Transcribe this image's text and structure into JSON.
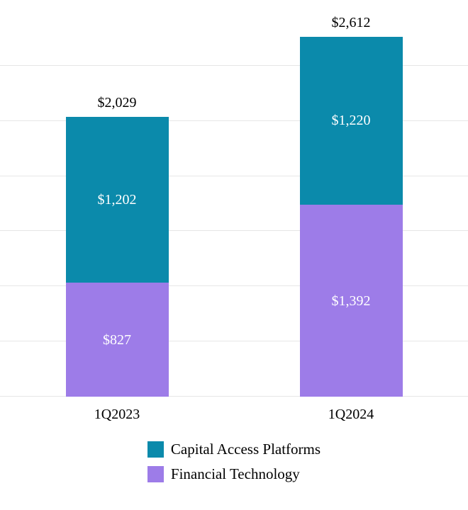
{
  "chart_data": {
    "type": "bar",
    "stacked": true,
    "title": "",
    "xlabel": "",
    "ylabel": "",
    "categories": [
      "1Q2023",
      "1Q2024"
    ],
    "series": [
      {
        "name": "Financial Technology",
        "color": "#9d7ce8",
        "values": [
          827,
          1392
        ],
        "labels": [
          "$827",
          "$1,392"
        ]
      },
      {
        "name": "Capital Access Platforms",
        "color": "#0b8aab",
        "values": [
          1202,
          1220
        ],
        "labels": [
          "$1,202",
          "$1,220"
        ]
      }
    ],
    "totals": [
      2029,
      2612
    ],
    "total_labels": [
      "$2,029",
      "$2,612"
    ],
    "ylim": [
      0,
      2800
    ],
    "grid_step": 400,
    "grid": true,
    "legend_position": "bottom",
    "legend": [
      {
        "label": "Capital Access Platforms",
        "color": "#0b8aab"
      },
      {
        "label": "Financial Technology",
        "color": "#9d7ce8"
      }
    ]
  }
}
